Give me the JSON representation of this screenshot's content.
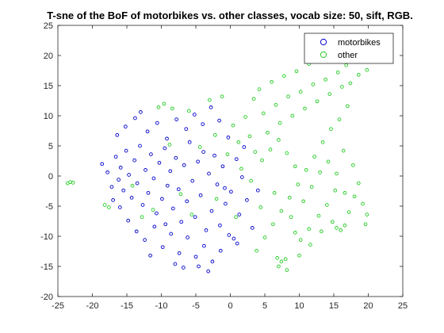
{
  "chart_data": {
    "type": "scatter",
    "title": "T-sne of the BoF of motorbikes vs. other classes, vocab size: 50, sift, RGB.",
    "xlabel": "",
    "ylabel": "",
    "xlim": [
      -25,
      25
    ],
    "ylim": [
      -20,
      25
    ],
    "x_ticks": [
      -25,
      -20,
      -15,
      -10,
      -5,
      0,
      5,
      10,
      15,
      20,
      25
    ],
    "y_ticks": [
      -20,
      -15,
      -10,
      -5,
      0,
      5,
      10,
      15,
      20,
      25
    ],
    "grid": false,
    "legend_position": "top-right",
    "series": [
      {
        "name": "motorbikes",
        "color": "#0000cc",
        "marker": "open-circle",
        "points": [
          [
            -18.6,
            2.0
          ],
          [
            -17.8,
            0.6
          ],
          [
            -17.2,
            -1.8
          ],
          [
            -16.6,
            3.2
          ],
          [
            -16.2,
            -0.6
          ],
          [
            -15.9,
            1.4
          ],
          [
            -15.5,
            -2.4
          ],
          [
            -15.1,
            4.2
          ],
          [
            -14.7,
            0.2
          ],
          [
            -14.3,
            -3.6
          ],
          [
            -13.9,
            2.6
          ],
          [
            -13.5,
            -1.2
          ],
          [
            -13.1,
            5.0
          ],
          [
            -12.7,
            -4.8
          ],
          [
            -12.3,
            1.0
          ],
          [
            -11.9,
            -2.8
          ],
          [
            -11.5,
            3.6
          ],
          [
            -11.1,
            -0.4
          ],
          [
            -10.7,
            -6.2
          ],
          [
            -10.3,
            2.2
          ],
          [
            -9.9,
            -3.8
          ],
          [
            -9.5,
            4.6
          ],
          [
            -9.1,
            -1.6
          ],
          [
            -8.7,
            0.8
          ],
          [
            -8.3,
            -5.4
          ],
          [
            -7.9,
            3.0
          ],
          [
            -7.5,
            -2.2
          ],
          [
            -7.1,
            -7.6
          ],
          [
            -6.7,
            1.8
          ],
          [
            -6.3,
            -4.2
          ],
          [
            -5.9,
            5.6
          ],
          [
            -5.5,
            -0.8
          ],
          [
            -5.1,
            -6.8
          ],
          [
            -4.7,
            2.4
          ],
          [
            -4.3,
            -3.2
          ],
          [
            -3.9,
            4.0
          ],
          [
            -3.5,
            -9.0
          ],
          [
            -3.1,
            0.4
          ],
          [
            -2.7,
            -5.8
          ],
          [
            -2.3,
            3.4
          ],
          [
            -1.9,
            -1.4
          ],
          [
            -1.5,
            -8.2
          ],
          [
            -1.1,
            1.6
          ],
          [
            -0.7,
            -4.6
          ],
          [
            -0.3,
            6.4
          ],
          [
            0.1,
            -2.6
          ],
          [
            0.5,
            -10.4
          ],
          [
            0.9,
            2.8
          ],
          [
            1.3,
            -6.4
          ],
          [
            1.7,
            -0.2
          ],
          [
            -14.8,
            -7.4
          ],
          [
            -13.6,
            -9.2
          ],
          [
            -12.4,
            -10.6
          ],
          [
            -11.0,
            -8.4
          ],
          [
            -9.8,
            -11.8
          ],
          [
            -8.6,
            -9.6
          ],
          [
            -7.4,
            -12.8
          ],
          [
            -6.2,
            -10.2
          ],
          [
            -5.0,
            -13.4
          ],
          [
            -3.8,
            -11.6
          ],
          [
            -2.6,
            -14.2
          ],
          [
            -1.4,
            -12.4
          ],
          [
            -0.2,
            -9.8
          ],
          [
            1.0,
            -11.2
          ],
          [
            -16.4,
            6.8
          ],
          [
            -15.2,
            8.2
          ],
          [
            -13.8,
            9.6
          ],
          [
            -12.0,
            7.4
          ],
          [
            -10.6,
            8.8
          ],
          [
            -9.2,
            6.2
          ],
          [
            -7.8,
            9.4
          ],
          [
            -6.4,
            7.8
          ],
          [
            -5.2,
            10.2
          ],
          [
            -4.0,
            8.6
          ],
          [
            -2.8,
            11.4
          ],
          [
            -1.6,
            9.2
          ],
          [
            -13.0,
            10.6
          ],
          [
            -11.6,
            -13.2
          ],
          [
            -16.0,
            -5.2
          ],
          [
            -17.0,
            -4.0
          ],
          [
            -8.0,
            -14.6
          ],
          [
            -6.8,
            -15.2
          ],
          [
            -4.6,
            -15.0
          ],
          [
            -3.2,
            -15.8
          ],
          [
            2.4,
            -4.0
          ],
          [
            3.2,
            -8.6
          ],
          [
            4.0,
            -2.4
          ],
          [
            2.0,
            4.8
          ],
          [
            -0.8,
            -2.0
          ],
          [
            -9.4,
            -8.0
          ]
        ]
      },
      {
        "name": "other",
        "color": "#22cc22",
        "marker": "open-circle",
        "points": [
          [
            -23.6,
            -1.2
          ],
          [
            -23.2,
            -1.0
          ],
          [
            -22.8,
            -1.1
          ],
          [
            -18.2,
            -4.8
          ],
          [
            -17.6,
            -5.2
          ],
          [
            -14.2,
            -1.6
          ],
          [
            -10.4,
            11.4
          ],
          [
            -9.6,
            12.0
          ],
          [
            -8.4,
            11.2
          ],
          [
            -6.0,
            10.8
          ],
          [
            -3.0,
            12.6
          ],
          [
            -1.2,
            13.2
          ],
          [
            0.4,
            8.4
          ],
          [
            1.2,
            5.6
          ],
          [
            2.2,
            9.8
          ],
          [
            2.8,
            6.6
          ],
          [
            3.4,
            12.8
          ],
          [
            4.2,
            14.4
          ],
          [
            4.8,
            10.4
          ],
          [
            5.4,
            7.2
          ],
          [
            6.0,
            15.6
          ],
          [
            6.6,
            11.8
          ],
          [
            7.2,
            8.8
          ],
          [
            7.8,
            16.6
          ],
          [
            8.4,
            13.2
          ],
          [
            9.0,
            10.0
          ],
          [
            9.6,
            17.4
          ],
          [
            10.2,
            14.0
          ],
          [
            10.8,
            11.2
          ],
          [
            11.4,
            18.6
          ],
          [
            12.0,
            15.2
          ],
          [
            12.6,
            12.4
          ],
          [
            13.2,
            19.0
          ],
          [
            13.8,
            16.0
          ],
          [
            14.4,
            13.6
          ],
          [
            15.0,
            20.4
          ],
          [
            15.6,
            17.2
          ],
          [
            16.2,
            14.8
          ],
          [
            16.8,
            18.4
          ],
          [
            17.4,
            15.4
          ],
          [
            18.0,
            19.6
          ],
          [
            18.6,
            16.8
          ],
          [
            19.2,
            20.0
          ],
          [
            19.8,
            17.6
          ],
          [
            20.4,
            19.2
          ],
          [
            17.0,
            11.6
          ],
          [
            15.8,
            9.4
          ],
          [
            14.6,
            7.8
          ],
          [
            13.4,
            5.6
          ],
          [
            12.2,
            3.2
          ],
          [
            11.0,
            1.0
          ],
          [
            9.8,
            -1.4
          ],
          [
            8.6,
            -3.6
          ],
          [
            7.4,
            -5.8
          ],
          [
            6.2,
            -8.0
          ],
          [
            5.0,
            -10.2
          ],
          [
            3.8,
            -12.4
          ],
          [
            6.8,
            -13.6
          ],
          [
            7.4,
            -14.2
          ],
          [
            8.0,
            -13.8
          ],
          [
            7.0,
            -15.0
          ],
          [
            8.2,
            -15.6
          ],
          [
            10.0,
            -13.2
          ],
          [
            11.6,
            -11.4
          ],
          [
            13.2,
            -9.2
          ],
          [
            14.8,
            -7.6
          ],
          [
            15.4,
            -8.6
          ],
          [
            16.0,
            -9.0
          ],
          [
            16.6,
            -8.2
          ],
          [
            17.2,
            -6.0
          ],
          [
            18.0,
            -3.4
          ],
          [
            18.6,
            -1.2
          ],
          [
            19.2,
            -4.6
          ],
          [
            17.8,
            1.8
          ],
          [
            16.4,
            4.2
          ],
          [
            15.2,
            -2.4
          ],
          [
            14.0,
            -4.8
          ],
          [
            12.8,
            -6.6
          ],
          [
            11.4,
            -8.8
          ],
          [
            10.2,
            -10.6
          ],
          [
            8.8,
            -6.8
          ],
          [
            9.4,
            -9.4
          ],
          [
            10.6,
            -4.2
          ],
          [
            11.8,
            -1.8
          ],
          [
            13.0,
            0.6
          ],
          [
            14.2,
            2.4
          ],
          [
            15.4,
            0.4
          ],
          [
            16.6,
            -2.8
          ],
          [
            19.8,
            -6.4
          ],
          [
            19.6,
            -8.0
          ],
          [
            -4.4,
            4.8
          ],
          [
            -2.2,
            6.8
          ],
          [
            -0.4,
            3.6
          ],
          [
            1.6,
            1.2
          ],
          [
            3.0,
            -0.8
          ],
          [
            4.6,
            2.6
          ],
          [
            5.8,
            4.4
          ],
          [
            7.0,
            6.0
          ],
          [
            8.2,
            3.8
          ],
          [
            9.4,
            1.6
          ],
          [
            -12.8,
            -6.8
          ],
          [
            -11.2,
            -5.6
          ],
          [
            -7.2,
            -3.0
          ],
          [
            -5.6,
            -6.4
          ],
          [
            -2.0,
            -3.8
          ],
          [
            0.8,
            -6.8
          ],
          [
            4.4,
            -5.2
          ],
          [
            6.4,
            -2.8
          ],
          [
            3.6,
            4.0
          ],
          [
            -8.8,
            5.2
          ]
        ]
      }
    ]
  }
}
